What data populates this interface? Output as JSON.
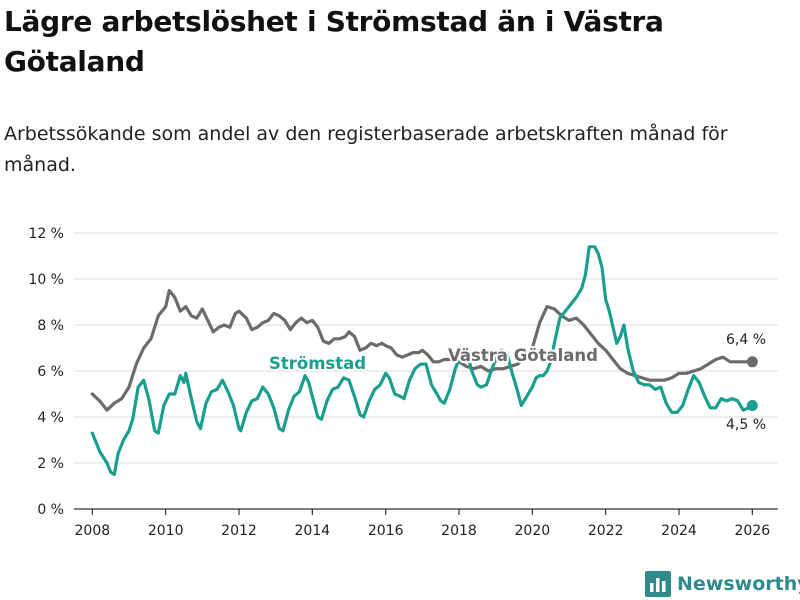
{
  "title": "Lägre arbetslöshet i Strömstad än i Västra Götaland",
  "subtitle": "Arbetssökande som andel av den registerbaserade arbetskraften månad för månad.",
  "brand": {
    "name": "Newsworthy",
    "icon": "bar-chart-logo-icon"
  },
  "colors": {
    "stromstad": "#1a9e8f",
    "vastra_gotaland": "#6b6b6e",
    "grid": "#dddddd",
    "axis": "#333333",
    "brand": "#2f8a8b"
  },
  "chart_data": {
    "type": "line",
    "title": "Lägre arbetslöshet i Strömstad än i Västra Götaland",
    "subtitle": "Arbetssökande som andel av den registerbaserade arbetskraften månad för månad.",
    "xlabel": "",
    "ylabel": "",
    "xlim": [
      2007.5,
      2026.7
    ],
    "ylim": [
      0,
      12
    ],
    "x_ticks": [
      2008,
      2010,
      2012,
      2014,
      2016,
      2018,
      2020,
      2022,
      2024,
      2026
    ],
    "x_tick_labels": [
      "2008",
      "2010",
      "2012",
      "2014",
      "2016",
      "2018",
      "2020",
      "2022",
      "2024",
      "2026"
    ],
    "y_ticks": [
      0,
      2,
      4,
      6,
      8,
      10,
      12
    ],
    "y_tick_labels": [
      "0 %",
      "2 %",
      "4 %",
      "6 %",
      "8 %",
      "10 %",
      "12 %"
    ],
    "grid": true,
    "series": [
      {
        "name": "Västra Götaland",
        "label": "Västra Götaland",
        "color": "#6b6b6e",
        "end_label": "6,4 %",
        "points": [
          [
            2008.0,
            5.0
          ],
          [
            2008.2,
            4.7
          ],
          [
            2008.4,
            4.3
          ],
          [
            2008.6,
            4.6
          ],
          [
            2008.8,
            4.8
          ],
          [
            2009.0,
            5.3
          ],
          [
            2009.2,
            6.3
          ],
          [
            2009.4,
            7.0
          ],
          [
            2009.6,
            7.4
          ],
          [
            2009.8,
            8.4
          ],
          [
            2010.0,
            8.8
          ],
          [
            2010.1,
            9.5
          ],
          [
            2010.25,
            9.2
          ],
          [
            2010.4,
            8.6
          ],
          [
            2010.55,
            8.8
          ],
          [
            2010.7,
            8.4
          ],
          [
            2010.85,
            8.3
          ],
          [
            2011.0,
            8.7
          ],
          [
            2011.15,
            8.2
          ],
          [
            2011.3,
            7.7
          ],
          [
            2011.45,
            7.9
          ],
          [
            2011.6,
            8.0
          ],
          [
            2011.75,
            7.9
          ],
          [
            2011.9,
            8.5
          ],
          [
            2012.0,
            8.6
          ],
          [
            2012.2,
            8.3
          ],
          [
            2012.35,
            7.8
          ],
          [
            2012.5,
            7.9
          ],
          [
            2012.65,
            8.1
          ],
          [
            2012.8,
            8.2
          ],
          [
            2012.95,
            8.5
          ],
          [
            2013.1,
            8.4
          ],
          [
            2013.25,
            8.2
          ],
          [
            2013.4,
            7.8
          ],
          [
            2013.55,
            8.1
          ],
          [
            2013.7,
            8.3
          ],
          [
            2013.85,
            8.1
          ],
          [
            2014.0,
            8.2
          ],
          [
            2014.15,
            7.9
          ],
          [
            2014.3,
            7.3
          ],
          [
            2014.45,
            7.2
          ],
          [
            2014.6,
            7.4
          ],
          [
            2014.75,
            7.4
          ],
          [
            2014.9,
            7.5
          ],
          [
            2015.0,
            7.7
          ],
          [
            2015.15,
            7.5
          ],
          [
            2015.3,
            6.9
          ],
          [
            2015.45,
            7.0
          ],
          [
            2015.6,
            7.2
          ],
          [
            2015.75,
            7.1
          ],
          [
            2015.9,
            7.2
          ],
          [
            2016.0,
            7.1
          ],
          [
            2016.15,
            7.0
          ],
          [
            2016.3,
            6.7
          ],
          [
            2016.45,
            6.6
          ],
          [
            2016.6,
            6.7
          ],
          [
            2016.75,
            6.8
          ],
          [
            2016.9,
            6.8
          ],
          [
            2017.0,
            6.9
          ],
          [
            2017.15,
            6.7
          ],
          [
            2017.3,
            6.4
          ],
          [
            2017.45,
            6.4
          ],
          [
            2017.6,
            6.5
          ],
          [
            2017.75,
            6.5
          ],
          [
            2017.9,
            6.5
          ],
          [
            2018.0,
            6.4
          ],
          [
            2018.2,
            6.2
          ],
          [
            2018.4,
            6.1
          ],
          [
            2018.6,
            6.2
          ],
          [
            2018.8,
            6.0
          ],
          [
            2019.0,
            6.1
          ],
          [
            2019.2,
            6.1
          ],
          [
            2019.4,
            6.2
          ],
          [
            2019.6,
            6.3
          ],
          [
            2019.8,
            6.6
          ],
          [
            2020.0,
            7.0
          ],
          [
            2020.2,
            8.1
          ],
          [
            2020.4,
            8.8
          ],
          [
            2020.6,
            8.7
          ],
          [
            2020.8,
            8.4
          ],
          [
            2021.0,
            8.2
          ],
          [
            2021.2,
            8.3
          ],
          [
            2021.4,
            8.0
          ],
          [
            2021.6,
            7.6
          ],
          [
            2021.8,
            7.2
          ],
          [
            2022.0,
            6.9
          ],
          [
            2022.2,
            6.5
          ],
          [
            2022.4,
            6.1
          ],
          [
            2022.6,
            5.9
          ],
          [
            2022.8,
            5.8
          ],
          [
            2023.0,
            5.7
          ],
          [
            2023.2,
            5.6
          ],
          [
            2023.4,
            5.6
          ],
          [
            2023.6,
            5.6
          ],
          [
            2023.8,
            5.7
          ],
          [
            2024.0,
            5.9
          ],
          [
            2024.2,
            5.9
          ],
          [
            2024.4,
            6.0
          ],
          [
            2024.6,
            6.1
          ],
          [
            2024.8,
            6.3
          ],
          [
            2025.0,
            6.5
          ],
          [
            2025.2,
            6.6
          ],
          [
            2025.4,
            6.4
          ],
          [
            2025.6,
            6.4
          ],
          [
            2025.8,
            6.4
          ],
          [
            2026.0,
            6.4
          ]
        ]
      },
      {
        "name": "Strömstad",
        "label": "Strömstad",
        "color": "#1a9e8f",
        "end_label": "4,5 %",
        "points": [
          [
            2008.0,
            3.3
          ],
          [
            2008.2,
            2.5
          ],
          [
            2008.4,
            2.0
          ],
          [
            2008.5,
            1.6
          ],
          [
            2008.6,
            1.5
          ],
          [
            2008.7,
            2.4
          ],
          [
            2008.85,
            3.0
          ],
          [
            2009.0,
            3.4
          ],
          [
            2009.1,
            3.9
          ],
          [
            2009.25,
            5.3
          ],
          [
            2009.4,
            5.6
          ],
          [
            2009.55,
            4.7
          ],
          [
            2009.7,
            3.4
          ],
          [
            2009.8,
            3.3
          ],
          [
            2009.95,
            4.5
          ],
          [
            2010.1,
            5.0
          ],
          [
            2010.25,
            5.0
          ],
          [
            2010.4,
            5.8
          ],
          [
            2010.5,
            5.5
          ],
          [
            2010.55,
            5.9
          ],
          [
            2010.7,
            4.8
          ],
          [
            2010.85,
            3.8
          ],
          [
            2010.95,
            3.5
          ],
          [
            2011.1,
            4.6
          ],
          [
            2011.25,
            5.1
          ],
          [
            2011.4,
            5.2
          ],
          [
            2011.55,
            5.6
          ],
          [
            2011.7,
            5.1
          ],
          [
            2011.85,
            4.5
          ],
          [
            2012.0,
            3.5
          ],
          [
            2012.05,
            3.4
          ],
          [
            2012.2,
            4.2
          ],
          [
            2012.35,
            4.7
          ],
          [
            2012.5,
            4.8
          ],
          [
            2012.65,
            5.3
          ],
          [
            2012.8,
            5.0
          ],
          [
            2012.95,
            4.4
          ],
          [
            2013.1,
            3.5
          ],
          [
            2013.2,
            3.4
          ],
          [
            2013.35,
            4.3
          ],
          [
            2013.5,
            4.9
          ],
          [
            2013.65,
            5.1
          ],
          [
            2013.8,
            5.8
          ],
          [
            2013.9,
            5.5
          ],
          [
            2014.0,
            4.9
          ],
          [
            2014.15,
            4.0
          ],
          [
            2014.25,
            3.9
          ],
          [
            2014.4,
            4.7
          ],
          [
            2014.55,
            5.2
          ],
          [
            2014.7,
            5.3
          ],
          [
            2014.85,
            5.7
          ],
          [
            2015.0,
            5.6
          ],
          [
            2015.15,
            4.9
          ],
          [
            2015.3,
            4.1
          ],
          [
            2015.4,
            4.0
          ],
          [
            2015.55,
            4.7
          ],
          [
            2015.7,
            5.2
          ],
          [
            2015.85,
            5.4
          ],
          [
            2016.0,
            5.9
          ],
          [
            2016.1,
            5.7
          ],
          [
            2016.25,
            5.0
          ],
          [
            2016.4,
            4.9
          ],
          [
            2016.5,
            4.8
          ],
          [
            2016.65,
            5.6
          ],
          [
            2016.8,
            6.1
          ],
          [
            2016.95,
            6.3
          ],
          [
            2017.1,
            6.3
          ],
          [
            2017.25,
            5.4
          ],
          [
            2017.4,
            5.0
          ],
          [
            2017.5,
            4.7
          ],
          [
            2017.6,
            4.6
          ],
          [
            2017.75,
            5.2
          ],
          [
            2017.9,
            6.1
          ],
          [
            2018.0,
            6.5
          ],
          [
            2018.1,
            6.9
          ],
          [
            2018.25,
            6.6
          ],
          [
            2018.35,
            6.0
          ],
          [
            2018.5,
            5.4
          ],
          [
            2018.6,
            5.3
          ],
          [
            2018.75,
            5.4
          ],
          [
            2018.9,
            6.1
          ],
          [
            2019.0,
            6.5
          ],
          [
            2019.15,
            6.9
          ],
          [
            2019.3,
            6.8
          ],
          [
            2019.45,
            5.9
          ],
          [
            2019.6,
            5.1
          ],
          [
            2019.7,
            4.5
          ],
          [
            2019.85,
            4.9
          ],
          [
            2020.0,
            5.3
          ],
          [
            2020.1,
            5.7
          ],
          [
            2020.2,
            5.8
          ],
          [
            2020.3,
            5.8
          ],
          [
            2020.4,
            6.0
          ],
          [
            2020.5,
            6.4
          ],
          [
            2020.6,
            7.2
          ],
          [
            2020.75,
            8.3
          ],
          [
            2020.9,
            8.6
          ],
          [
            2021.05,
            8.9
          ],
          [
            2021.2,
            9.2
          ],
          [
            2021.35,
            9.6
          ],
          [
            2021.45,
            10.2
          ],
          [
            2021.55,
            11.4
          ],
          [
            2021.7,
            11.4
          ],
          [
            2021.8,
            11.1
          ],
          [
            2021.9,
            10.5
          ],
          [
            2022.0,
            9.1
          ],
          [
            2022.1,
            8.6
          ],
          [
            2022.2,
            7.9
          ],
          [
            2022.3,
            7.2
          ],
          [
            2022.4,
            7.5
          ],
          [
            2022.5,
            8.0
          ],
          [
            2022.6,
            7.0
          ],
          [
            2022.75,
            6.0
          ],
          [
            2022.9,
            5.5
          ],
          [
            2023.05,
            5.4
          ],
          [
            2023.2,
            5.4
          ],
          [
            2023.35,
            5.2
          ],
          [
            2023.5,
            5.3
          ],
          [
            2023.65,
            4.6
          ],
          [
            2023.8,
            4.2
          ],
          [
            2023.95,
            4.2
          ],
          [
            2024.1,
            4.5
          ],
          [
            2024.25,
            5.2
          ],
          [
            2024.4,
            5.8
          ],
          [
            2024.55,
            5.5
          ],
          [
            2024.7,
            4.9
          ],
          [
            2024.85,
            4.4
          ],
          [
            2025.0,
            4.4
          ],
          [
            2025.15,
            4.8
          ],
          [
            2025.3,
            4.7
          ],
          [
            2025.45,
            4.8
          ],
          [
            2025.6,
            4.7
          ],
          [
            2025.75,
            4.3
          ],
          [
            2025.9,
            4.4
          ],
          [
            2026.0,
            4.5
          ]
        ]
      }
    ],
    "annotations": [
      {
        "series": "Strömstad",
        "text": "Strömstad"
      },
      {
        "series": "Västra Götaland",
        "text": "Västra Götaland"
      }
    ]
  }
}
